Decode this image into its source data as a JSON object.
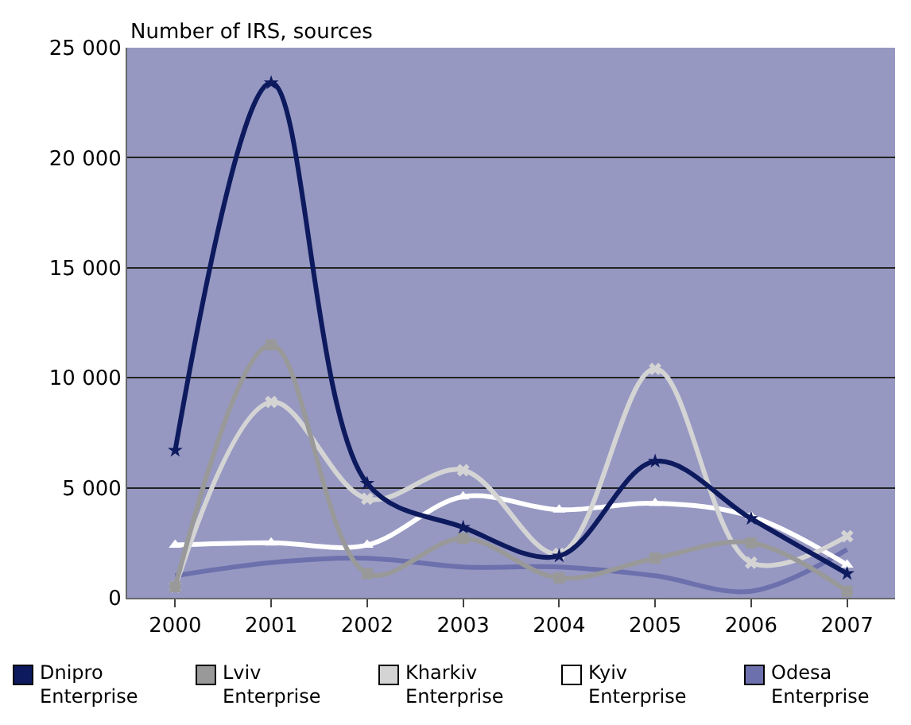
{
  "chart_data": {
    "type": "line",
    "ylabel": "Number of IRS, sources",
    "categories": [
      "2000",
      "2001",
      "2002",
      "2003",
      "2004",
      "2005",
      "2006",
      "2007"
    ],
    "series": [
      {
        "name": "Dnipro Enterprise",
        "color": "#0d1a5e",
        "marker": "star",
        "values": [
          6700,
          23400,
          5200,
          3200,
          1900,
          6200,
          3600,
          1100
        ]
      },
      {
        "name": "Lviv Enterprise",
        "color": "#999999",
        "marker": "square",
        "values": [
          500,
          11500,
          1100,
          2700,
          900,
          1800,
          2500,
          300
        ]
      },
      {
        "name": "Kharkiv Enterprise",
        "color": "#d4d4d4",
        "marker": "cross",
        "values": [
          500,
          8900,
          4500,
          5800,
          2000,
          10400,
          1600,
          2800
        ]
      },
      {
        "name": "Kyiv Enterprise",
        "color": "#ffffff",
        "marker": "triangle",
        "values": [
          2400,
          2500,
          2400,
          4600,
          4000,
          4300,
          3700,
          1500
        ]
      },
      {
        "name": "Odesa Enterprise",
        "color": "#6c70ac",
        "marker": "none",
        "values": [
          1000,
          1600,
          1800,
          1400,
          1400,
          1000,
          300,
          2200
        ]
      }
    ],
    "ylim": [
      0,
      25000
    ],
    "yticks": [
      {
        "value": 0,
        "label": "0"
      },
      {
        "value": 5000,
        "label": "5 000"
      },
      {
        "value": 10000,
        "label": "10 000"
      },
      {
        "value": 15000,
        "label": "15 000"
      },
      {
        "value": 20000,
        "label": "20 000"
      },
      {
        "value": 25000,
        "label": "25 000"
      }
    ],
    "grid": "y",
    "legend": "bottom"
  }
}
